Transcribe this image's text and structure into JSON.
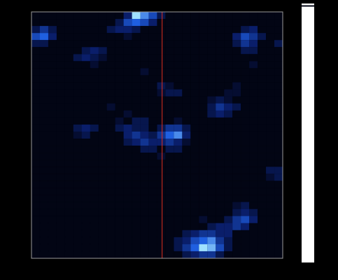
{
  "chart_data": {
    "type": "heatmap",
    "tick_labels": false,
    "xlim": [
      0,
      30
    ],
    "ylim": [
      0,
      35
    ],
    "xticks": [],
    "yticks": [],
    "color_range": [
      0,
      10
    ],
    "vline": {
      "x": 15.6,
      "color": "#e03020"
    },
    "cells": [
      [
        0,
        0,
        0,
        0,
        0,
        0,
        0,
        0,
        0,
        0,
        0,
        3,
        9,
        7,
        5,
        2,
        0,
        0,
        0,
        0,
        0,
        0,
        0,
        0,
        0,
        0,
        0,
        0,
        0,
        0
      ],
      [
        0,
        0,
        0,
        0,
        0,
        0,
        0,
        0,
        0,
        0,
        2,
        5,
        6,
        5,
        3,
        0,
        0,
        0,
        0,
        0,
        0,
        0,
        0,
        0,
        0,
        0,
        0,
        0,
        0,
        0
      ],
      [
        2,
        4,
        2,
        0,
        0,
        0,
        0,
        0,
        0,
        2,
        3,
        3,
        2,
        0,
        0,
        0,
        0,
        0,
        0,
        0,
        0,
        0,
        0,
        0,
        0,
        2,
        3,
        0,
        0,
        0
      ],
      [
        5,
        6,
        3,
        0,
        0,
        0,
        0,
        0,
        0,
        0,
        0,
        1,
        0,
        0,
        0,
        0,
        0,
        0,
        0,
        0,
        0,
        0,
        0,
        0,
        3,
        5,
        4,
        2,
        0,
        0
      ],
      [
        2,
        2,
        0,
        0,
        0,
        0,
        0,
        0,
        0,
        0,
        0,
        0,
        0,
        0,
        0,
        0,
        0,
        0,
        0,
        0,
        0,
        0,
        0,
        0,
        2,
        4,
        3,
        0,
        0,
        2
      ],
      [
        0,
        0,
        0,
        0,
        0,
        0,
        2,
        3,
        2,
        0,
        0,
        0,
        0,
        0,
        0,
        0,
        0,
        0,
        0,
        0,
        0,
        0,
        0,
        0,
        0,
        2,
        2,
        0,
        0,
        0
      ],
      [
        0,
        0,
        0,
        0,
        0,
        2,
        3,
        2,
        1,
        0,
        0,
        0,
        0,
        0,
        0,
        0,
        0,
        0,
        0,
        0,
        0,
        0,
        0,
        0,
        0,
        0,
        0,
        0,
        0,
        0
      ],
      [
        0,
        0,
        0,
        0,
        0,
        0,
        0,
        1,
        0,
        0,
        0,
        0,
        0,
        0,
        0,
        0,
        0,
        0,
        0,
        0,
        0,
        0,
        0,
        0,
        0,
        0,
        1,
        0,
        0,
        0
      ],
      [
        0,
        0,
        0,
        0,
        0,
        0,
        0,
        0,
        0,
        0,
        0,
        0,
        0,
        1,
        0,
        0,
        0,
        0,
        0,
        0,
        0,
        0,
        0,
        0,
        0,
        0,
        0,
        0,
        0,
        0
      ],
      [
        0,
        0,
        0,
        0,
        0,
        0,
        0,
        0,
        0,
        0,
        0,
        0,
        0,
        0,
        0,
        0,
        0,
        0,
        0,
        0,
        0,
        0,
        0,
        0,
        0,
        0,
        0,
        0,
        0,
        0
      ],
      [
        0,
        0,
        0,
        0,
        0,
        0,
        0,
        0,
        0,
        0,
        0,
        0,
        0,
        0,
        0,
        2,
        1,
        0,
        0,
        0,
        0,
        0,
        0,
        0,
        1,
        0,
        0,
        0,
        0,
        0
      ],
      [
        0,
        0,
        0,
        0,
        0,
        0,
        0,
        0,
        0,
        0,
        0,
        0,
        0,
        0,
        0,
        1,
        2,
        2,
        0,
        0,
        0,
        0,
        0,
        1,
        1,
        0,
        0,
        0,
        0,
        0
      ],
      [
        0,
        0,
        0,
        0,
        0,
        0,
        0,
        0,
        0,
        0,
        0,
        0,
        0,
        0,
        0,
        0,
        0,
        0,
        0,
        0,
        0,
        1,
        2,
        1,
        0,
        0,
        0,
        0,
        0,
        0
      ],
      [
        0,
        0,
        0,
        0,
        0,
        0,
        0,
        0,
        0,
        1,
        0,
        0,
        0,
        0,
        0,
        0,
        0,
        0,
        0,
        0,
        0,
        2,
        4,
        3,
        2,
        0,
        0,
        0,
        0,
        0
      ],
      [
        0,
        0,
        0,
        0,
        0,
        0,
        0,
        0,
        0,
        0,
        0,
        1,
        0,
        0,
        0,
        0,
        0,
        0,
        0,
        0,
        0,
        2,
        3,
        2,
        0,
        0,
        0,
        0,
        0,
        0
      ],
      [
        0,
        0,
        0,
        0,
        0,
        0,
        0,
        0,
        0,
        0,
        1,
        0,
        2,
        2,
        0,
        0,
        0,
        1,
        0,
        0,
        0,
        0,
        0,
        0,
        0,
        0,
        0,
        0,
        0,
        0
      ],
      [
        0,
        0,
        0,
        0,
        0,
        2,
        3,
        2,
        0,
        0,
        2,
        3,
        2,
        2,
        0,
        2,
        4,
        4,
        2,
        0,
        0,
        0,
        0,
        0,
        0,
        0,
        0,
        0,
        0,
        0
      ],
      [
        0,
        0,
        0,
        0,
        0,
        1,
        2,
        0,
        0,
        0,
        0,
        3,
        4,
        3,
        2,
        4,
        6,
        7,
        3,
        0,
        0,
        0,
        0,
        0,
        0,
        0,
        0,
        0,
        0,
        0
      ],
      [
        0,
        0,
        0,
        0,
        0,
        0,
        0,
        0,
        0,
        0,
        0,
        2,
        3,
        4,
        3,
        3,
        4,
        3,
        1,
        0,
        0,
        0,
        0,
        0,
        0,
        0,
        0,
        0,
        0,
        0
      ],
      [
        0,
        0,
        0,
        0,
        0,
        0,
        0,
        0,
        0,
        0,
        0,
        0,
        0,
        2,
        2,
        0,
        2,
        2,
        0,
        0,
        0,
        0,
        0,
        0,
        0,
        0,
        0,
        0,
        0,
        0
      ],
      [
        0,
        0,
        0,
        0,
        0,
        0,
        0,
        0,
        0,
        0,
        0,
        0,
        0,
        0,
        0,
        1,
        0,
        0,
        0,
        0,
        0,
        0,
        0,
        0,
        0,
        0,
        0,
        0,
        0,
        0
      ],
      [
        0,
        0,
        0,
        0,
        0,
        0,
        0,
        0,
        0,
        0,
        0,
        0,
        0,
        0,
        0,
        0,
        0,
        0,
        0,
        0,
        0,
        0,
        0,
        0,
        0,
        0,
        0,
        0,
        0,
        0
      ],
      [
        0,
        0,
        0,
        0,
        0,
        0,
        0,
        0,
        0,
        0,
        0,
        0,
        0,
        0,
        0,
        0,
        0,
        0,
        0,
        0,
        0,
        0,
        0,
        0,
        0,
        0,
        0,
        0,
        2,
        2
      ],
      [
        0,
        0,
        0,
        0,
        0,
        0,
        0,
        0,
        0,
        0,
        0,
        0,
        0,
        0,
        0,
        0,
        0,
        0,
        0,
        0,
        0,
        0,
        0,
        0,
        0,
        0,
        0,
        0,
        1,
        2
      ],
      [
        0,
        0,
        0,
        0,
        0,
        0,
        0,
        0,
        0,
        0,
        0,
        0,
        0,
        0,
        0,
        0,
        0,
        0,
        0,
        0,
        0,
        0,
        0,
        0,
        0,
        0,
        0,
        0,
        0,
        0
      ],
      [
        0,
        0,
        0,
        0,
        0,
        0,
        0,
        0,
        0,
        0,
        0,
        0,
        0,
        0,
        0,
        0,
        0,
        0,
        0,
        0,
        0,
        0,
        0,
        0,
        0,
        0,
        0,
        0,
        0,
        0
      ],
      [
        0,
        0,
        0,
        0,
        0,
        0,
        0,
        0,
        0,
        0,
        0,
        0,
        0,
        0,
        0,
        0,
        0,
        0,
        0,
        0,
        0,
        0,
        0,
        0,
        0,
        0,
        0,
        0,
        0,
        0
      ],
      [
        0,
        0,
        0,
        0,
        0,
        0,
        0,
        0,
        0,
        0,
        0,
        0,
        0,
        0,
        0,
        0,
        0,
        0,
        0,
        0,
        0,
        0,
        0,
        0,
        1,
        2,
        0,
        0,
        0,
        0
      ],
      [
        0,
        0,
        0,
        0,
        0,
        0,
        0,
        0,
        0,
        0,
        0,
        0,
        0,
        0,
        0,
        0,
        0,
        0,
        0,
        0,
        0,
        0,
        0,
        0,
        2,
        3,
        2,
        0,
        0,
        0
      ],
      [
        0,
        0,
        0,
        0,
        0,
        0,
        0,
        0,
        0,
        0,
        0,
        0,
        0,
        0,
        0,
        0,
        0,
        0,
        0,
        0,
        1,
        0,
        0,
        2,
        4,
        5,
        3,
        0,
        0,
        0
      ],
      [
        0,
        0,
        0,
        0,
        0,
        0,
        0,
        0,
        0,
        0,
        0,
        0,
        0,
        0,
        0,
        0,
        0,
        0,
        0,
        0,
        0,
        2,
        3,
        3,
        4,
        3,
        0,
        0,
        0,
        0
      ],
      [
        0,
        0,
        0,
        0,
        0,
        0,
        0,
        0,
        0,
        0,
        0,
        0,
        0,
        0,
        0,
        0,
        0,
        0,
        2,
        3,
        4,
        4,
        3,
        3,
        0,
        0,
        0,
        0,
        0,
        0
      ],
      [
        0,
        0,
        0,
        0,
        0,
        0,
        0,
        0,
        0,
        0,
        0,
        0,
        0,
        0,
        0,
        0,
        0,
        2,
        3,
        5,
        6,
        7,
        4,
        2,
        0,
        0,
        0,
        0,
        0,
        0
      ],
      [
        0,
        0,
        0,
        0,
        0,
        0,
        0,
        0,
        0,
        0,
        0,
        0,
        0,
        0,
        0,
        0,
        0,
        2,
        4,
        6,
        9,
        8,
        5,
        2,
        0,
        0,
        0,
        0,
        0,
        0
      ],
      [
        0,
        0,
        0,
        0,
        0,
        0,
        0,
        0,
        0,
        0,
        0,
        0,
        0,
        0,
        0,
        0,
        0,
        0,
        2,
        3,
        4,
        4,
        2,
        0,
        0,
        0,
        0,
        0,
        0,
        0
      ]
    ]
  }
}
